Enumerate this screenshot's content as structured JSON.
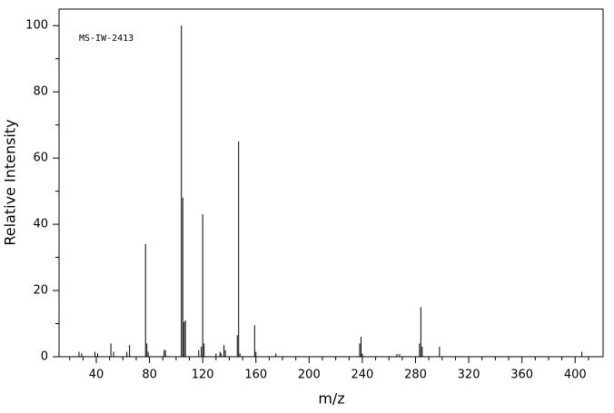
{
  "chart_data": {
    "type": "stem",
    "annotation": "MS-IW-2413",
    "xlabel": "m/z",
    "ylabel": "Relative Intensity",
    "x": [
      27,
      29,
      39,
      41,
      51,
      53,
      63,
      65,
      77,
      78,
      79,
      91,
      92,
      104,
      105,
      106,
      107,
      117,
      119,
      120,
      121,
      130,
      133,
      134,
      136,
      137,
      146,
      147,
      148,
      159,
      160,
      175,
      238,
      239,
      240,
      266,
      268,
      283,
      284,
      285,
      298,
      405
    ],
    "values": [
      1.5,
      1,
      1.5,
      1,
      4,
      1.5,
      1.5,
      3.5,
      34,
      4,
      1.5,
      2,
      2,
      100,
      48,
      10.5,
      11,
      2,
      3,
      43,
      4,
      1,
      1.5,
      1,
      3.5,
      2,
      6.5,
      65,
      1,
      9.5,
      1.5,
      1,
      4,
      6,
      1,
      0.8,
      0.8,
      4,
      15,
      3,
      3,
      1.5
    ],
    "color": "#000000",
    "xlim": [
      12,
      421
    ],
    "ylim": [
      0,
      105
    ],
    "xticks": [
      40,
      80,
      120,
      160,
      200,
      240,
      280,
      320,
      360,
      400
    ],
    "yticks": [
      0,
      20,
      40,
      60,
      80,
      100
    ],
    "xticks_minor": [
      20,
      30,
      50,
      60,
      70,
      90,
      100,
      110,
      130,
      140,
      150,
      170,
      180,
      190,
      210,
      220,
      230,
      250,
      260,
      270,
      290,
      300,
      310,
      330,
      340,
      350,
      370,
      380,
      390,
      410
    ],
    "yticks_minor": [
      10,
      30,
      50,
      70,
      90
    ]
  }
}
